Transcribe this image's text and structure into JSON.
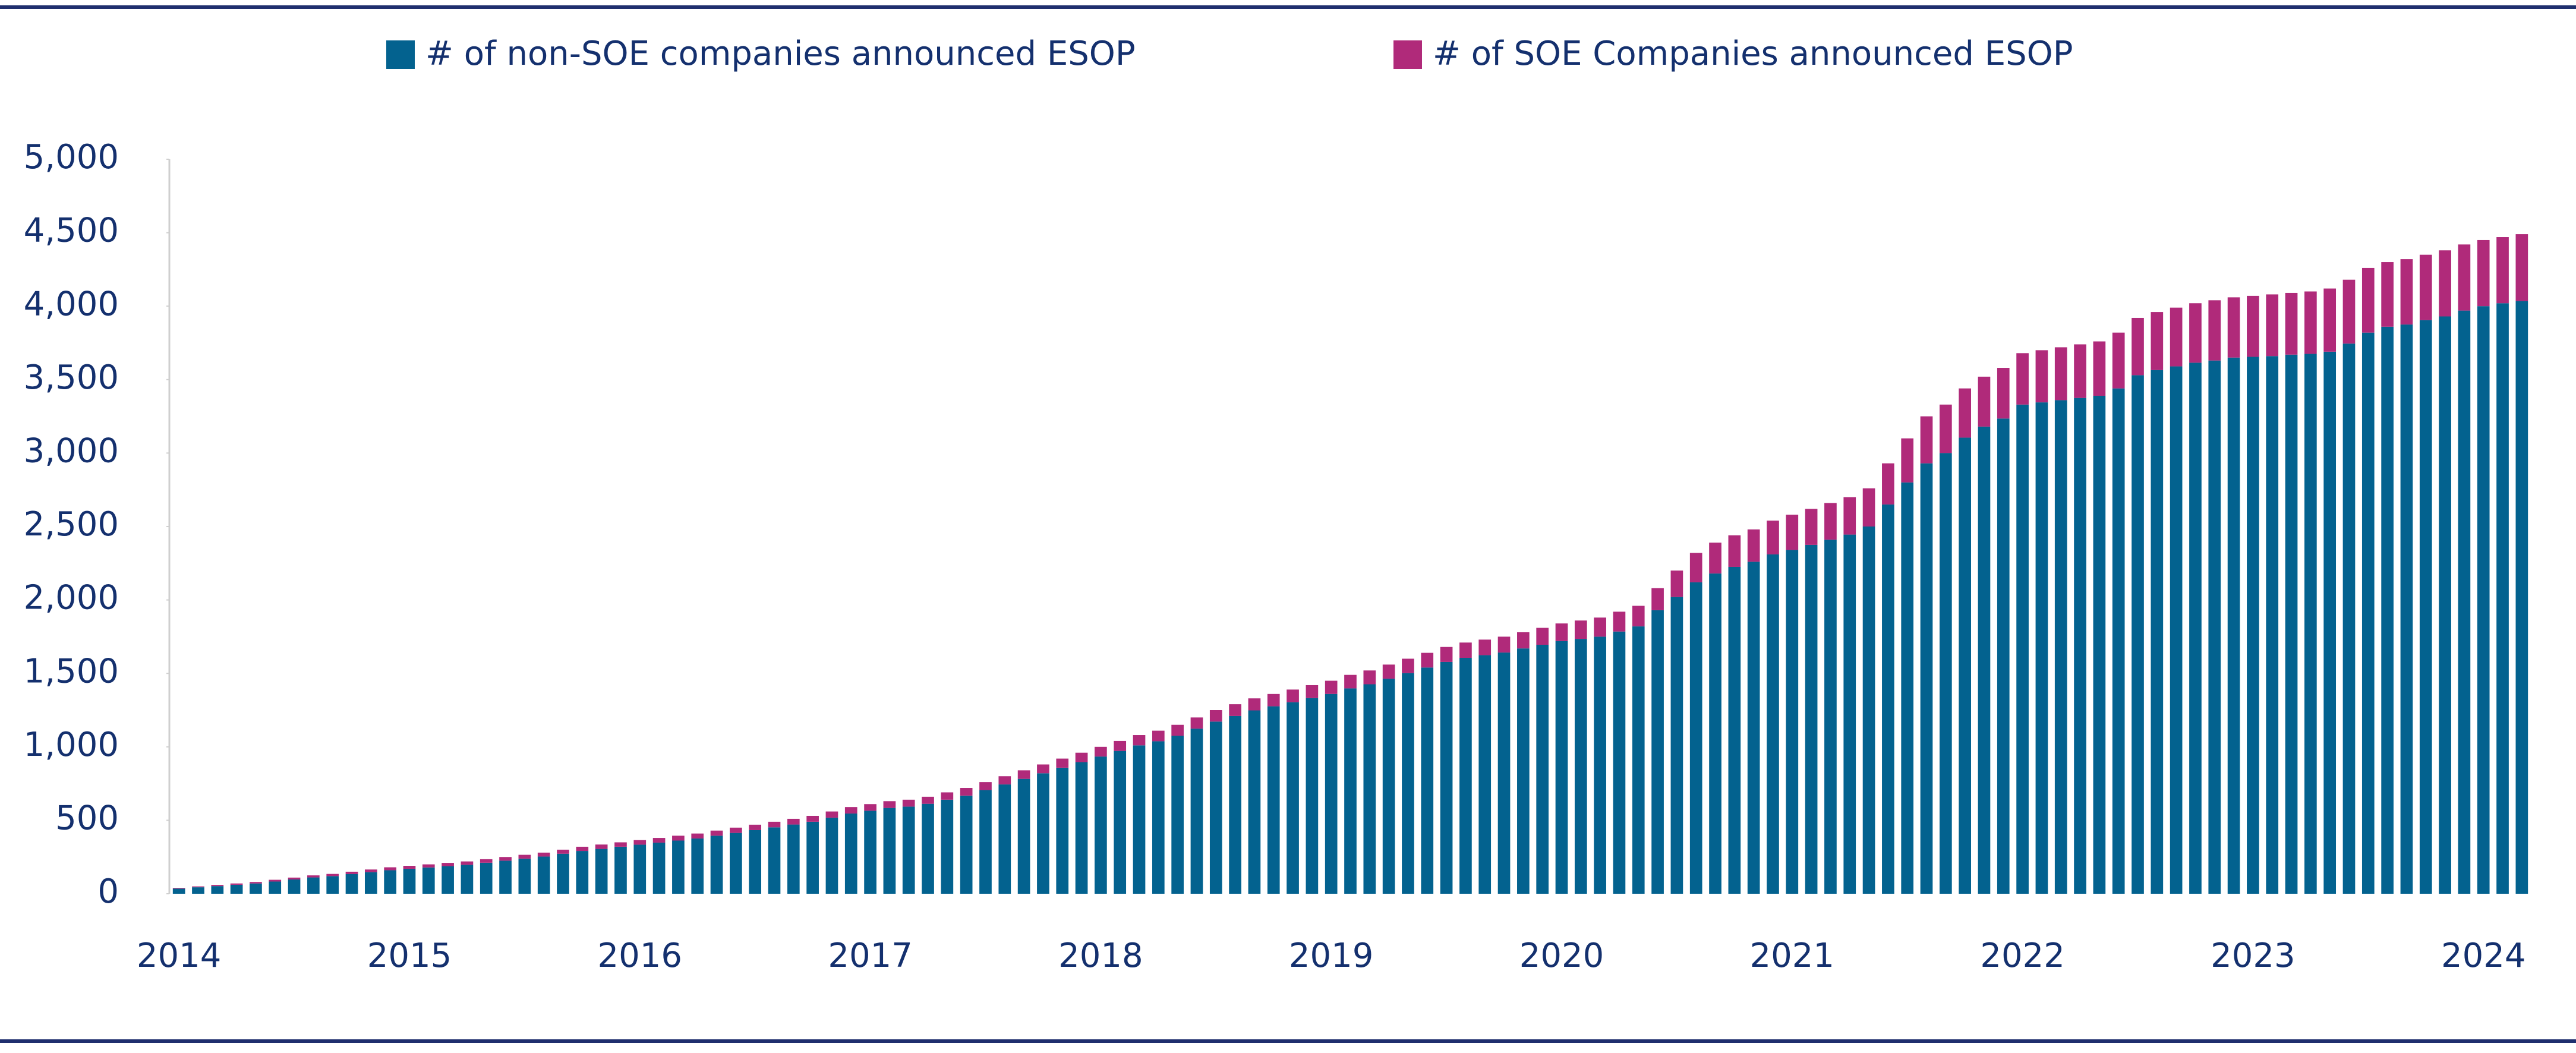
{
  "chart_data": {
    "type": "stacked_bar",
    "categories": [
      "2014",
      null,
      null,
      null,
      null,
      null,
      null,
      null,
      null,
      null,
      null,
      null,
      "2015",
      null,
      null,
      null,
      null,
      null,
      null,
      null,
      null,
      null,
      null,
      null,
      "2016",
      null,
      null,
      null,
      null,
      null,
      null,
      null,
      null,
      null,
      null,
      null,
      "2017",
      null,
      null,
      null,
      null,
      null,
      null,
      null,
      null,
      null,
      null,
      null,
      "2018",
      null,
      null,
      null,
      null,
      null,
      null,
      null,
      null,
      null,
      null,
      null,
      "2019",
      null,
      null,
      null,
      null,
      null,
      null,
      null,
      null,
      null,
      null,
      null,
      "2020",
      null,
      null,
      null,
      null,
      null,
      null,
      null,
      null,
      null,
      null,
      null,
      "2021",
      null,
      null,
      null,
      null,
      null,
      null,
      null,
      null,
      null,
      null,
      null,
      "2022",
      null,
      null,
      null,
      null,
      null,
      null,
      null,
      null,
      null,
      null,
      null,
      "2023",
      null,
      null,
      null,
      null,
      null,
      null,
      null,
      null,
      null,
      null,
      null,
      "2024",
      null,
      null
    ],
    "series": [
      {
        "name": "# of non-SOE companies announced ESOP",
        "color": "#03628f",
        "values": [
          35,
          44,
          52,
          61,
          70,
          83,
          97,
          111,
          120,
          134,
          147,
          160,
          170,
          179,
          188,
          197,
          211,
          225,
          239,
          253,
          272,
          291,
          305,
          320,
          334,
          348,
          362,
          376,
          395,
          414,
          433,
          452,
          471,
          490,
          518,
          546,
          565,
          584,
          593,
          612,
          640,
          668,
          706,
          744,
          782,
          820,
          858,
          896,
          934,
          972,
          1010,
          1038,
          1076,
          1124,
          1172,
          1210,
          1248,
          1276,
          1304,
          1332,
          1360,
          1398,
          1426,
          1464,
          1502,
          1540,
          1578,
          1606,
          1624,
          1642,
          1670,
          1695,
          1720,
          1735,
          1750,
          1785,
          1820,
          1930,
          2020,
          2120,
          2180,
          2225,
          2260,
          2310,
          2340,
          2375,
          2410,
          2445,
          2500,
          2650,
          2800,
          2930,
          3000,
          3105,
          3180,
          3235,
          3330,
          3345,
          3360,
          3375,
          3390,
          3440,
          3530,
          3565,
          3590,
          3615,
          3630,
          3650,
          3655,
          3660,
          3670,
          3675,
          3690,
          3745,
          3820,
          3860,
          3875,
          3905,
          3930,
          3970,
          4000,
          4020,
          4035
        ]
      },
      {
        "name": "# of SOE Companies announced ESOP",
        "color": "#b02a7a",
        "values": [
          5,
          6,
          8,
          9,
          10,
          12,
          13,
          14,
          15,
          16,
          18,
          20,
          20,
          21,
          22,
          23,
          24,
          25,
          26,
          27,
          28,
          29,
          30,
          30,
          31,
          32,
          33,
          34,
          35,
          36,
          37,
          38,
          39,
          40,
          42,
          44,
          45,
          46,
          47,
          48,
          50,
          52,
          54,
          56,
          58,
          60,
          62,
          64,
          66,
          68,
          70,
          72,
          74,
          76,
          78,
          80,
          82,
          84,
          86,
          88,
          90,
          92,
          94,
          96,
          98,
          100,
          102,
          104,
          106,
          108,
          110,
          115,
          120,
          125,
          130,
          135,
          140,
          150,
          180,
          200,
          210,
          215,
          220,
          230,
          240,
          245,
          250,
          255,
          260,
          280,
          300,
          320,
          330,
          335,
          340,
          345,
          350,
          355,
          360,
          365,
          370,
          380,
          390,
          395,
          400,
          405,
          410,
          410,
          415,
          420,
          420,
          425,
          430,
          435,
          440,
          440,
          445,
          445,
          450,
          450,
          450,
          450,
          455
        ]
      }
    ],
    "ylim": [
      0,
      5000
    ],
    "yticks": [
      0,
      500,
      {
        "value": 1000,
        "label": "1,000"
      },
      {
        "value": 1500,
        "label": "1,500"
      },
      {
        "value": 2000,
        "label": "2,000"
      },
      {
        "value": 2500,
        "label": "2,500"
      },
      {
        "value": 3000,
        "label": "3,000"
      },
      {
        "value": 3500,
        "label": "3,500"
      },
      {
        "value": 4000,
        "label": "4,000"
      },
      {
        "value": 4500,
        "label": "4,500"
      },
      {
        "value": 5000,
        "label": "5,000"
      }
    ],
    "legend": "top",
    "grid": false
  }
}
